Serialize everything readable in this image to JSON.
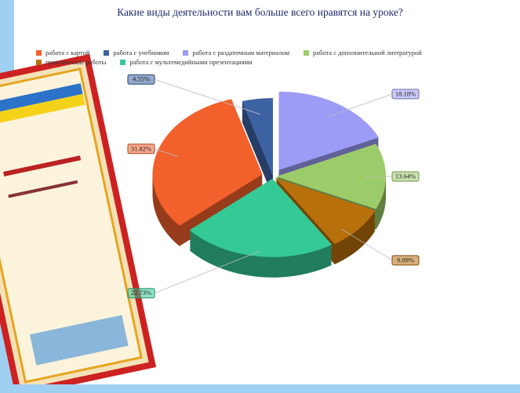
{
  "chart_data": {
    "type": "pie",
    "title": "Какие виды деятельности вам больше всего нравятся на уроке?",
    "categories": [
      "работа с картой",
      "работа с учебником",
      "работа с раздаточным материалом",
      "работа с дополнительной литературой",
      "практические работы",
      "работа с мультемедийными презентациями"
    ],
    "values": [
      31.82,
      4.55,
      18.18,
      13.64,
      9.09,
      22.73
    ],
    "value_labels": [
      "31.82%",
      "4.55%",
      "18.18%",
      "13.64%",
      "9.09%",
      "22.73%"
    ],
    "colors": [
      "#f2602c",
      "#3d62a3",
      "#9c9cf6",
      "#9ccc6a",
      "#b8700c",
      "#35c996"
    ],
    "legend": "top"
  }
}
